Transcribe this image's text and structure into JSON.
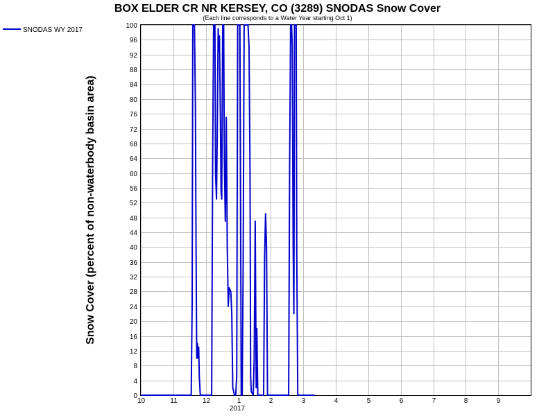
{
  "chart_data": {
    "type": "line",
    "title": "BOX ELDER CR NR KERSEY, CO (3289) SNODAS Snow Cover",
    "subtitle": "(Each line corresponds to a Water Year starting Oct 1)",
    "ylabel": "Snow Cover (percent of non-waterbody basin area)",
    "xlabel": "",
    "ylim": [
      0,
      100
    ],
    "y_ticks": [
      0,
      4,
      8,
      12,
      16,
      20,
      24,
      28,
      32,
      36,
      40,
      44,
      48,
      52,
      56,
      60,
      64,
      68,
      72,
      76,
      80,
      84,
      88,
      92,
      96,
      100
    ],
    "x_ticks": [
      {
        "label": "10",
        "month": 0
      },
      {
        "label": "11",
        "month": 1
      },
      {
        "label": "12",
        "month": 2
      },
      {
        "label": "1",
        "month": 3
      },
      {
        "label": "2",
        "month": 4
      },
      {
        "label": "3",
        "month": 5
      },
      {
        "label": "4",
        "month": 6
      },
      {
        "label": "5",
        "month": 7
      },
      {
        "label": "6",
        "month": 8
      },
      {
        "label": "7",
        "month": 9
      },
      {
        "label": "8",
        "month": 10
      },
      {
        "label": "9",
        "month": 11
      }
    ],
    "xlim": [
      0,
      12
    ],
    "year_label": "2017",
    "grid": true,
    "legend_position": "top-left",
    "series": [
      {
        "name": "SNODAS WY 2017",
        "color": "#0000cc",
        "points": [
          [
            0,
            0
          ],
          [
            1.5,
            0
          ],
          [
            1.55,
            0
          ],
          [
            1.58,
            25
          ],
          [
            1.6,
            100
          ],
          [
            1.65,
            100
          ],
          [
            1.68,
            78
          ],
          [
            1.7,
            40
          ],
          [
            1.72,
            10
          ],
          [
            1.74,
            14
          ],
          [
            1.76,
            10
          ],
          [
            1.78,
            13
          ],
          [
            1.8,
            5
          ],
          [
            1.83,
            0
          ],
          [
            2.1,
            0
          ],
          [
            2.18,
            0
          ],
          [
            2.21,
            62
          ],
          [
            2.24,
            100
          ],
          [
            2.28,
            100
          ],
          [
            2.3,
            60
          ],
          [
            2.33,
            53
          ],
          [
            2.35,
            70
          ],
          [
            2.38,
            99
          ],
          [
            2.4,
            93
          ],
          [
            2.42,
            97
          ],
          [
            2.45,
            75
          ],
          [
            2.47,
            55
          ],
          [
            2.49,
            53
          ],
          [
            2.52,
            100
          ],
          [
            2.55,
            100
          ],
          [
            2.57,
            63
          ],
          [
            2.6,
            47
          ],
          [
            2.63,
            75
          ],
          [
            2.66,
            40
          ],
          [
            2.69,
            24
          ],
          [
            2.72,
            29
          ],
          [
            2.77,
            28
          ],
          [
            2.8,
            22
          ],
          [
            2.83,
            2
          ],
          [
            2.86,
            1
          ],
          [
            2.88,
            0
          ],
          [
            2.92,
            0
          ],
          [
            2.95,
            5
          ],
          [
            2.98,
            100
          ],
          [
            3.05,
            100
          ],
          [
            3.07,
            52
          ],
          [
            3.09,
            0
          ],
          [
            3.12,
            0
          ],
          [
            3.15,
            35
          ],
          [
            3.18,
            100
          ],
          [
            3.3,
            100
          ],
          [
            3.33,
            94
          ],
          [
            3.36,
            60
          ],
          [
            3.38,
            5
          ],
          [
            3.4,
            1
          ],
          [
            3.46,
            0
          ],
          [
            3.49,
            10
          ],
          [
            3.52,
            47
          ],
          [
            3.55,
            2
          ],
          [
            3.57,
            18
          ],
          [
            3.6,
            0
          ],
          [
            3.78,
            0
          ],
          [
            3.81,
            37
          ],
          [
            3.84,
            49
          ],
          [
            3.87,
            40
          ],
          [
            3.9,
            0
          ],
          [
            4.55,
            0
          ],
          [
            4.58,
            62
          ],
          [
            4.61,
            100
          ],
          [
            4.64,
            100
          ],
          [
            4.66,
            94
          ],
          [
            4.69,
            40
          ],
          [
            4.71,
            22
          ],
          [
            4.73,
            100
          ],
          [
            4.78,
            100
          ],
          [
            4.8,
            38
          ],
          [
            4.83,
            0
          ],
          [
            5.35,
            0
          ]
        ]
      }
    ]
  }
}
